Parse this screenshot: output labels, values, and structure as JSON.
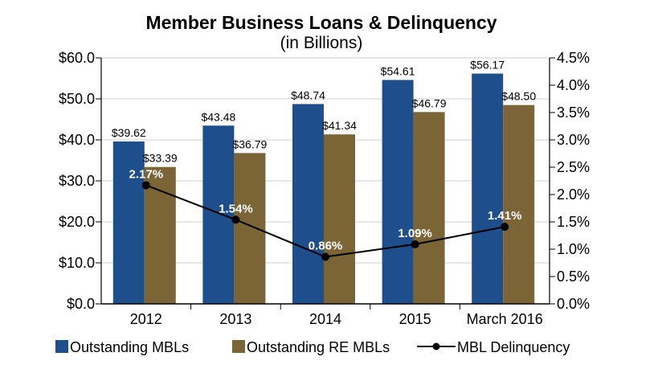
{
  "chart_data": {
    "type": "bar",
    "title": "Member Business Loans & Delinquency",
    "subtitle": "(in Billions)",
    "categories": [
      "2012",
      "2013",
      "2014",
      "2015",
      "March 2016"
    ],
    "series": [
      {
        "name": "Outstanding MBLs",
        "type": "bar",
        "axis": "left",
        "color": "#1f4e8c",
        "values": [
          39.62,
          43.48,
          48.74,
          54.61,
          56.17
        ],
        "labels": [
          "$39.62",
          "$43.48",
          "$48.74",
          "$54.61",
          "$56.17"
        ]
      },
      {
        "name": "Outstanding RE MBLs",
        "type": "bar",
        "axis": "left",
        "color": "#7b6536",
        "values": [
          33.39,
          36.79,
          41.34,
          46.79,
          48.5
        ],
        "labels": [
          "$33.39",
          "$36.79",
          "$41.34",
          "$46.79",
          "$48.50"
        ]
      },
      {
        "name": "MBL Delinquency",
        "type": "line",
        "axis": "right",
        "color": "#000000",
        "values": [
          2.17,
          1.54,
          0.86,
          1.09,
          1.41
        ],
        "labels": [
          "2.17%",
          "1.54%",
          "0.86%",
          "1.09%",
          "1.41%"
        ]
      }
    ],
    "y_left": {
      "min": 0,
      "max": 60,
      "ticks": [
        0,
        10,
        20,
        30,
        40,
        50,
        60
      ],
      "tick_labels": [
        "$0.0",
        "$10.0",
        "$20.0",
        "$30.0",
        "$40.0",
        "$50.0",
        "$60.0"
      ]
    },
    "y_right": {
      "min": 0,
      "max": 4.5,
      "ticks": [
        0,
        0.5,
        1,
        1.5,
        2,
        2.5,
        3,
        3.5,
        4,
        4.5
      ],
      "tick_labels": [
        "0.0%",
        "0.5%",
        "1.0%",
        "1.5%",
        "2.0%",
        "2.5%",
        "3.0%",
        "3.5%",
        "4.0%",
        "4.5%"
      ]
    },
    "grid": "horizontal",
    "legend_position": "bottom"
  }
}
